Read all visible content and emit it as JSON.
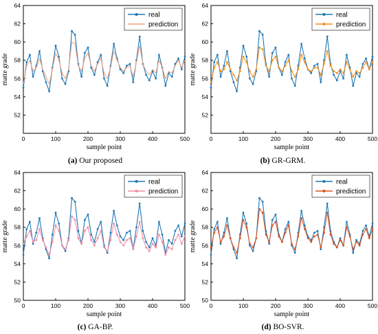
{
  "figure": {
    "captions": [
      {
        "letter": "(a)",
        "text": " Our proposed"
      },
      {
        "letter": "(b)",
        "text": " GR-GRM."
      },
      {
        "letter": "(c)",
        "text": " GA-BP."
      },
      {
        "letter": "(d)",
        "text": " BO-SVR."
      }
    ]
  },
  "chart_data": [
    {
      "type": "line",
      "xlabel": "sample point",
      "ylabel": "matte grade",
      "xlim": [
        0,
        500
      ],
      "ylim": [
        50,
        64
      ],
      "xticks": [
        0,
        100,
        200,
        300,
        400,
        500
      ],
      "yticks": [
        52,
        54,
        56,
        58,
        60,
        62,
        64
      ],
      "legend_position": "top-right",
      "series": [
        {
          "name": "real",
          "color": "#1f77b4",
          "marker": "circle",
          "values_ref": "real"
        },
        {
          "name": "prediction",
          "color": "#f2a07b",
          "marker": "none",
          "values_ref": "pred_a"
        }
      ]
    },
    {
      "type": "line",
      "xlabel": "sample point",
      "ylabel": "matte grade",
      "xlim": [
        0,
        500
      ],
      "ylim": [
        50,
        64
      ],
      "xticks": [
        0,
        100,
        200,
        300,
        400,
        500
      ],
      "yticks": [
        52,
        54,
        56,
        58,
        60,
        62,
        64
      ],
      "legend_position": "top-right",
      "series": [
        {
          "name": "real",
          "color": "#1f77b4",
          "marker": "circle",
          "values_ref": "real"
        },
        {
          "name": "prediction",
          "color": "#f28e1c",
          "marker": "circle",
          "values_ref": "pred_b"
        }
      ]
    },
    {
      "type": "line",
      "xlabel": "sample point",
      "ylabel": "matte grade",
      "xlim": [
        0,
        500
      ],
      "ylim": [
        50,
        64
      ],
      "xticks": [
        0,
        100,
        200,
        300,
        400,
        500
      ],
      "yticks": [
        50,
        52,
        54,
        56,
        58,
        60,
        62,
        64
      ],
      "legend_position": "top-right",
      "series": [
        {
          "name": "real",
          "color": "#1f77b4",
          "marker": "circle",
          "values_ref": "real"
        },
        {
          "name": "prediction",
          "color": "#f08aa0",
          "marker": "circle",
          "values_ref": "pred_c"
        }
      ]
    },
    {
      "type": "line",
      "xlabel": "sample point",
      "ylabel": "matte grade",
      "xlim": [
        0,
        500
      ],
      "ylim": [
        50,
        64
      ],
      "xticks": [
        0,
        100,
        200,
        300,
        400,
        500
      ],
      "yticks": [
        50,
        52,
        54,
        56,
        58,
        60,
        62,
        64
      ],
      "legend_position": "top-right",
      "series": [
        {
          "name": "real",
          "color": "#1f77b4",
          "marker": "circle",
          "values_ref": "real"
        },
        {
          "name": "prediction",
          "color": "#e0501a",
          "marker": "circle",
          "values_ref": "pred_d"
        }
      ]
    }
  ],
  "series_values": {
    "x_start": 0,
    "x_step": 10,
    "real": [
      55.0,
      57.8,
      58.6,
      56.2,
      57.4,
      59.0,
      56.8,
      55.6,
      54.6,
      57.2,
      59.6,
      58.4,
      56.0,
      55.4,
      56.8,
      61.2,
      60.8,
      57.6,
      56.2,
      58.8,
      59.4,
      57.2,
      56.4,
      57.8,
      58.6,
      56.0,
      55.2,
      57.4,
      59.8,
      58.2,
      57.0,
      56.6,
      57.4,
      57.6,
      55.6,
      58.0,
      60.6,
      57.6,
      56.4,
      55.8,
      56.8,
      56.0,
      58.6,
      57.2,
      55.2,
      56.6,
      56.2,
      57.6,
      58.2,
      57.0,
      58.4
    ],
    "pred_a": [
      55.4,
      57.4,
      58.0,
      56.8,
      57.2,
      58.2,
      57.0,
      56.2,
      55.4,
      57.0,
      58.8,
      58.0,
      56.6,
      56.0,
      57.0,
      60.0,
      59.8,
      57.4,
      56.8,
      58.2,
      58.8,
      57.4,
      56.8,
      57.6,
      58.2,
      56.6,
      56.0,
      57.2,
      59.0,
      58.0,
      57.2,
      56.8,
      57.2,
      57.4,
      56.2,
      57.8,
      59.6,
      57.6,
      56.8,
      56.4,
      57.0,
      56.6,
      58.0,
      57.2,
      56.0,
      56.8,
      56.6,
      57.4,
      58.0,
      57.2,
      58.0
    ],
    "pred_b": [
      55.6,
      57.2,
      57.8,
      56.8,
      57.0,
      57.8,
      57.0,
      56.4,
      55.8,
      56.8,
      58.4,
      57.8,
      56.8,
      56.2,
      57.0,
      59.4,
      59.2,
      57.4,
      56.8,
      58.0,
      58.4,
      57.2,
      56.8,
      57.4,
      58.0,
      56.8,
      56.2,
      57.0,
      58.6,
      57.8,
      57.0,
      56.8,
      57.2,
      57.2,
      56.4,
      57.6,
      59.0,
      57.4,
      56.8,
      56.6,
      57.0,
      56.6,
      57.8,
      57.0,
      56.2,
      56.8,
      56.6,
      57.2,
      57.8,
      57.0,
      57.8
    ],
    "pred_c": [
      56.2,
      57.0,
      57.6,
      56.4,
      56.6,
      57.8,
      56.6,
      55.8,
      55.0,
      56.4,
      58.2,
      57.6,
      56.0,
      55.6,
      56.6,
      59.2,
      58.8,
      56.8,
      56.2,
      57.6,
      58.0,
      56.6,
      56.0,
      56.8,
      57.6,
      55.8,
      55.4,
      56.6,
      58.4,
      57.2,
      56.4,
      56.0,
      56.6,
      56.8,
      55.6,
      57.0,
      58.6,
      56.8,
      55.8,
      55.4,
      56.2,
      55.8,
      57.2,
      56.4,
      55.0,
      55.8,
      55.6,
      56.6,
      57.2,
      56.2,
      57.0
    ],
    "pred_d": [
      55.8,
      57.4,
      58.0,
      56.4,
      57.0,
      58.2,
      56.8,
      55.8,
      55.2,
      56.8,
      58.8,
      58.0,
      56.2,
      55.8,
      56.8,
      60.0,
      59.6,
      57.2,
      56.4,
      58.2,
      58.6,
      57.0,
      56.4,
      57.4,
      58.2,
      56.2,
      55.6,
      57.0,
      59.0,
      57.8,
      56.8,
      56.4,
      57.0,
      57.2,
      55.8,
      57.4,
      59.6,
      57.2,
      56.2,
      55.8,
      56.6,
      56.0,
      58.0,
      57.0,
      55.6,
      56.4,
      56.0,
      57.2,
      57.8,
      56.8,
      57.8
    ]
  }
}
